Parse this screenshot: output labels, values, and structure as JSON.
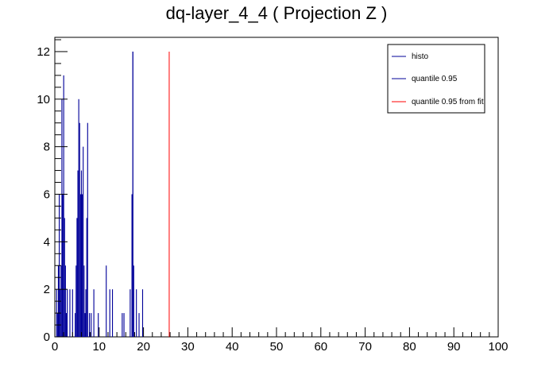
{
  "chart_data": {
    "type": "bar",
    "title": "dq-layer_4_4 ( Projection Z )",
    "xlabel": "",
    "ylabel": "",
    "xlim": [
      0,
      100
    ],
    "ylim": [
      0,
      12.6
    ],
    "x_ticks": [
      0,
      10,
      20,
      30,
      40,
      50,
      60,
      70,
      80,
      90,
      100
    ],
    "y_ticks": [
      0,
      2,
      4,
      6,
      8,
      10,
      12
    ],
    "legend_position": "top-right",
    "grid": false,
    "series": [
      {
        "name": "histo",
        "color": "#000099",
        "bars": [
          {
            "x": 0.4,
            "y": 2
          },
          {
            "x": 0.6,
            "y": 1
          },
          {
            "x": 0.8,
            "y": 3
          },
          {
            "x": 1.0,
            "y": 6
          },
          {
            "x": 1.2,
            "y": 2
          },
          {
            "x": 1.4,
            "y": 3
          },
          {
            "x": 1.6,
            "y": 10
          },
          {
            "x": 1.8,
            "y": 6
          },
          {
            "x": 2.0,
            "y": 11
          },
          {
            "x": 2.2,
            "y": 5
          },
          {
            "x": 2.4,
            "y": 3
          },
          {
            "x": 2.6,
            "y": 1
          },
          {
            "x": 2.8,
            "y": 2
          },
          {
            "x": 3.4,
            "y": 2
          },
          {
            "x": 4.0,
            "y": 2
          },
          {
            "x": 4.6,
            "y": 1
          },
          {
            "x": 4.8,
            "y": 3
          },
          {
            "x": 5.0,
            "y": 5
          },
          {
            "x": 5.2,
            "y": 7
          },
          {
            "x": 5.4,
            "y": 10
          },
          {
            "x": 5.6,
            "y": 9
          },
          {
            "x": 5.8,
            "y": 6
          },
          {
            "x": 6.0,
            "y": 7
          },
          {
            "x": 6.2,
            "y": 6
          },
          {
            "x": 6.4,
            "y": 8
          },
          {
            "x": 6.6,
            "y": 3
          },
          {
            "x": 6.8,
            "y": 1
          },
          {
            "x": 7.0,
            "y": 2
          },
          {
            "x": 7.2,
            "y": 5
          },
          {
            "x": 7.4,
            "y": 9
          },
          {
            "x": 7.8,
            "y": 1
          },
          {
            "x": 8.2,
            "y": 1
          },
          {
            "x": 8.8,
            "y": 2
          },
          {
            "x": 9.8,
            "y": 1
          },
          {
            "x": 11.6,
            "y": 3
          },
          {
            "x": 12.4,
            "y": 2
          },
          {
            "x": 13.0,
            "y": 2
          },
          {
            "x": 15.2,
            "y": 1
          },
          {
            "x": 15.6,
            "y": 1
          },
          {
            "x": 17.0,
            "y": 2
          },
          {
            "x": 17.4,
            "y": 6
          },
          {
            "x": 17.6,
            "y": 12
          },
          {
            "x": 17.8,
            "y": 3
          },
          {
            "x": 18.4,
            "y": 2
          },
          {
            "x": 19.0,
            "y": 1
          },
          {
            "x": 19.8,
            "y": 2
          }
        ]
      },
      {
        "name": "quantile 0.95",
        "color": "#000099",
        "x": 17.6,
        "y": 12
      },
      {
        "name": "quantile 0.95 from fit",
        "color": "#ff0000",
        "x": 25.8,
        "y": 12
      }
    ]
  }
}
